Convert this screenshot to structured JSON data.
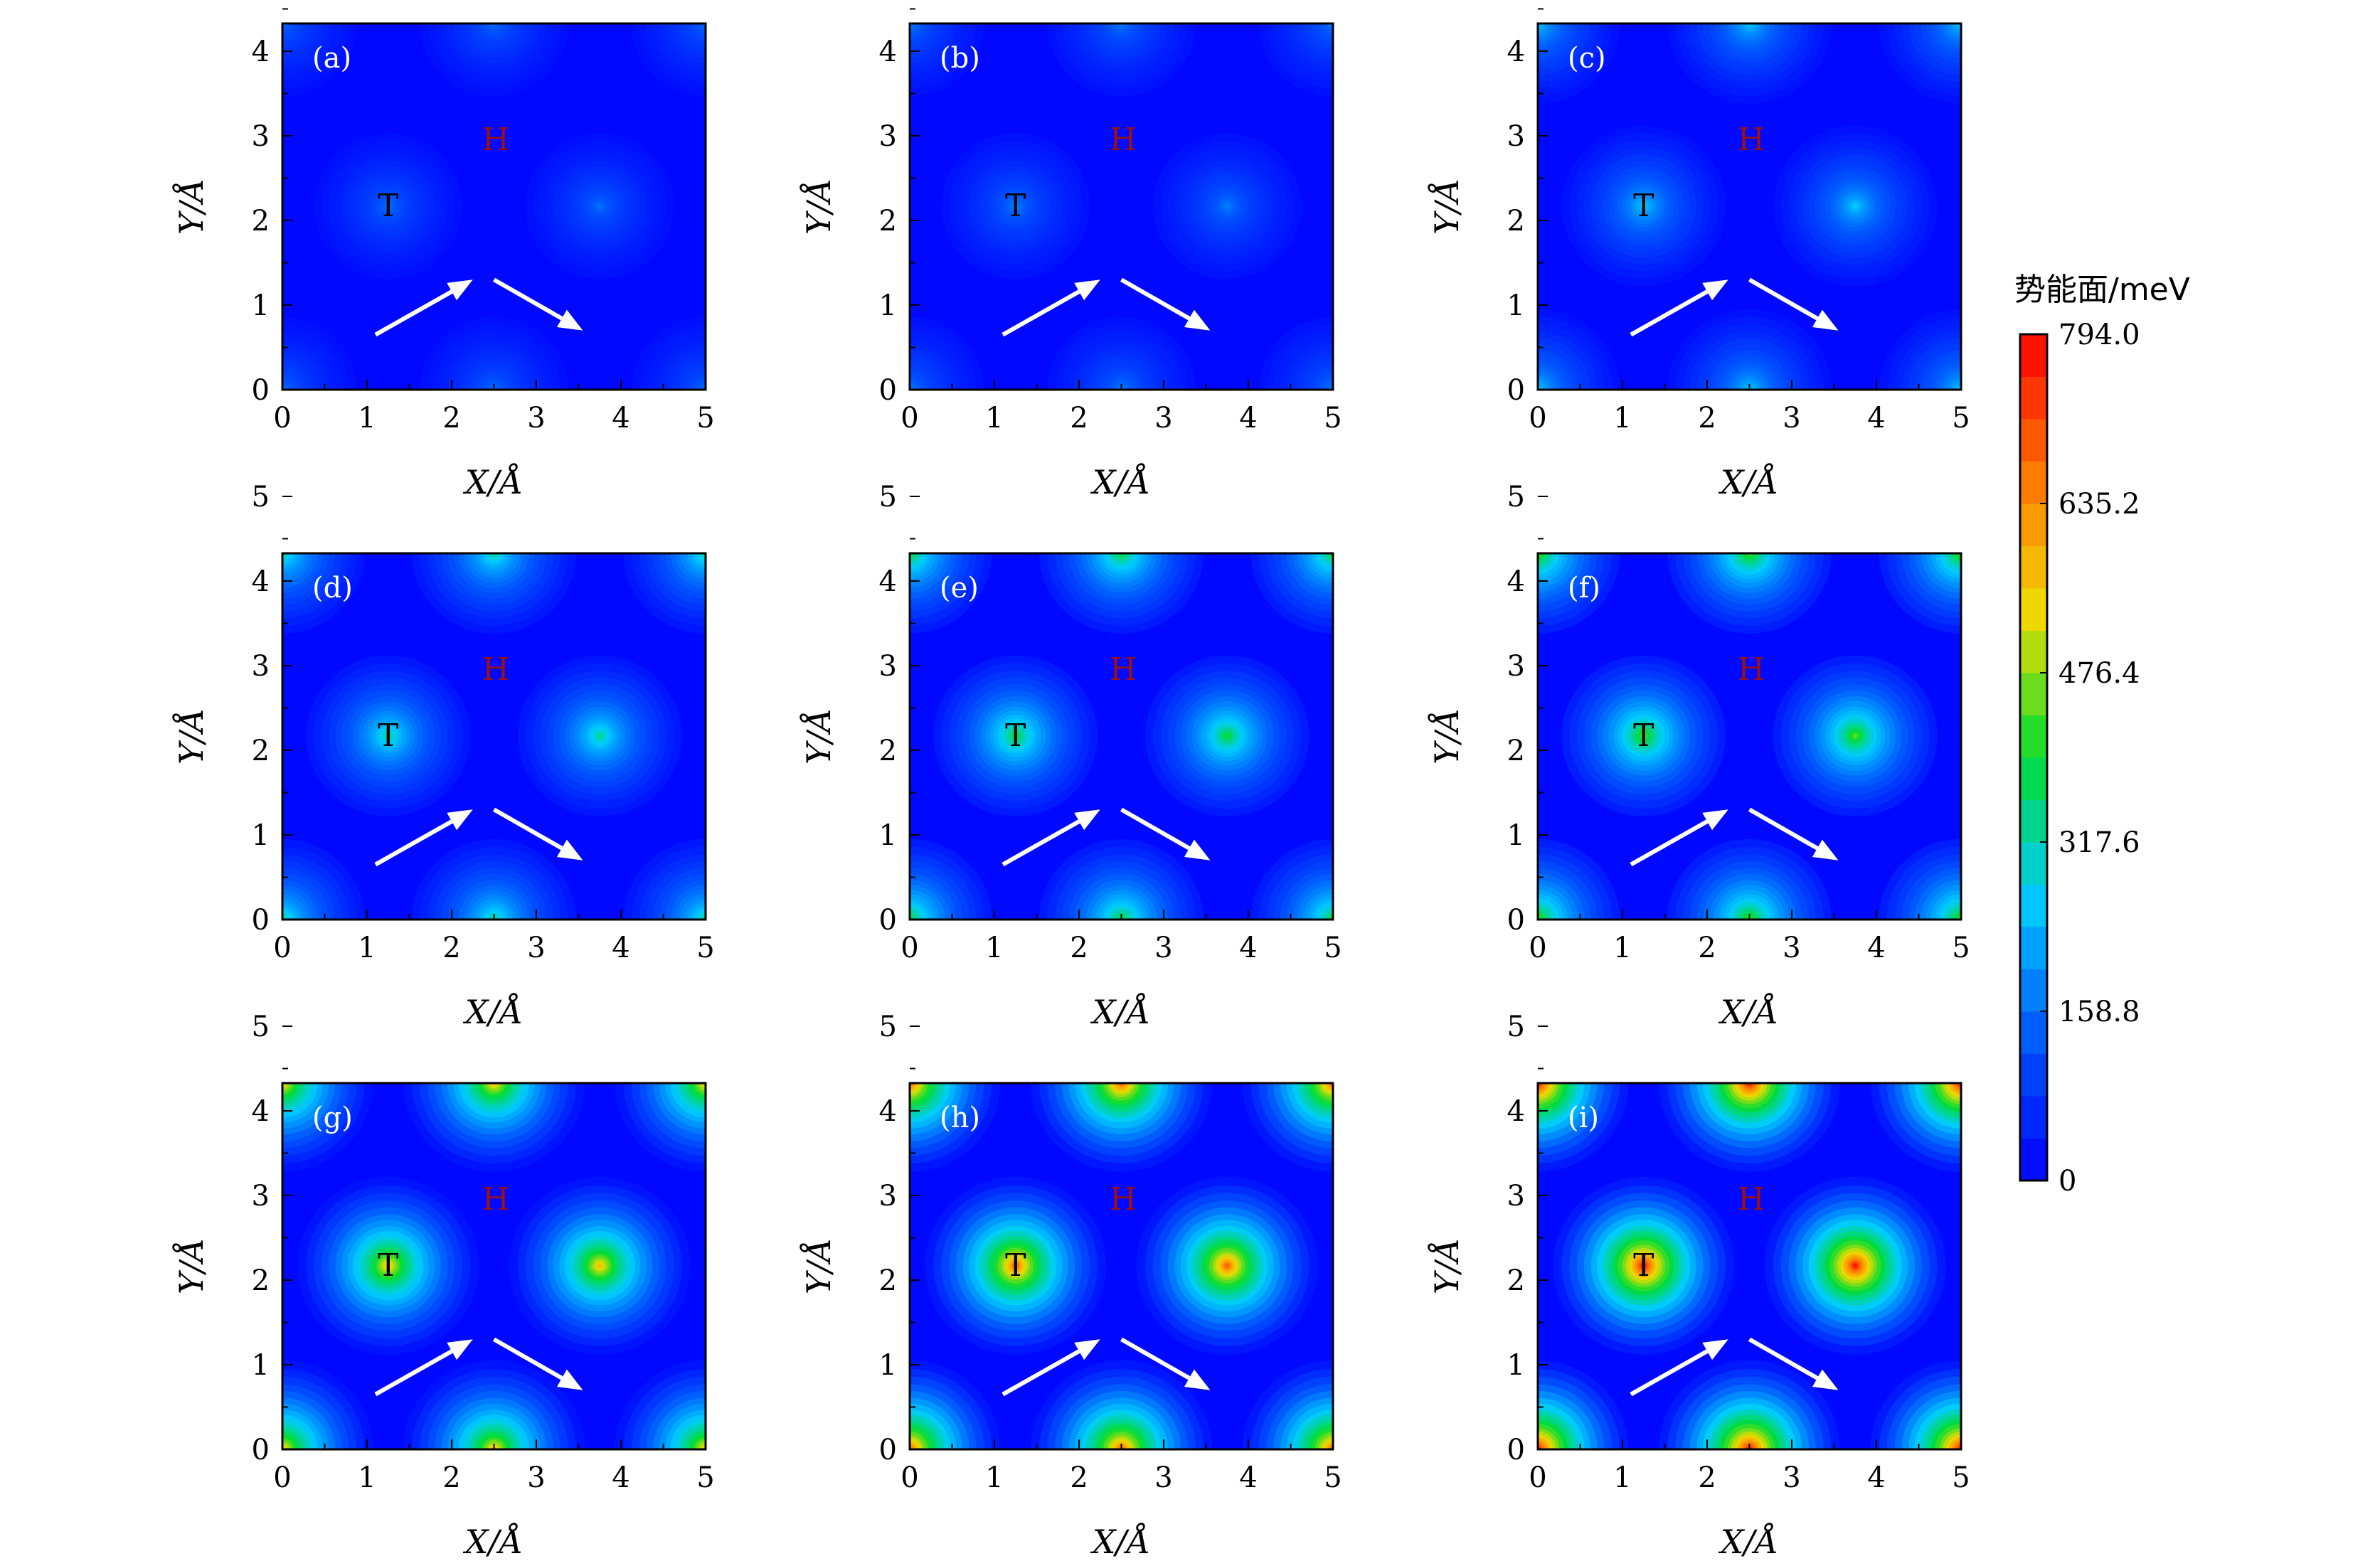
{
  "chart_data": {
    "type": "heatmap",
    "axes": {
      "xlabel": "X/Å",
      "ylabel": "Y/Å",
      "xlim": [
        0,
        5
      ],
      "ylim": [
        0,
        5
      ],
      "ticks": [
        "0",
        "1",
        "2",
        "3",
        "4",
        "5"
      ]
    },
    "sites": {
      "top": "T",
      "hollow": "H"
    },
    "colorbar": {
      "title": "势能面/meV",
      "range": [
        0,
        794.0
      ],
      "tick_labels": [
        "794.0",
        "635.2",
        "476.4",
        "317.6",
        "158.8",
        "0"
      ],
      "levels": 20,
      "colormap": [
        "#0000ff",
        "#0057ff",
        "#00ccff",
        "#00dd33",
        "#eedd00",
        "#ff7700",
        "#ff0000"
      ]
    },
    "panels": [
      {
        "label": "(a)",
        "max_fraction": 0.2
      },
      {
        "label": "(b)",
        "max_fraction": 0.22
      },
      {
        "label": "(c)",
        "max_fraction": 0.33
      },
      {
        "label": "(d)",
        "max_fraction": 0.42
      },
      {
        "label": "(e)",
        "max_fraction": 0.5
      },
      {
        "label": "(f)",
        "max_fraction": 0.56
      },
      {
        "label": "(g)",
        "max_fraction": 0.72
      },
      {
        "label": "(h)",
        "max_fraction": 0.86
      },
      {
        "label": "(i)",
        "max_fraction": 0.97
      }
    ]
  }
}
